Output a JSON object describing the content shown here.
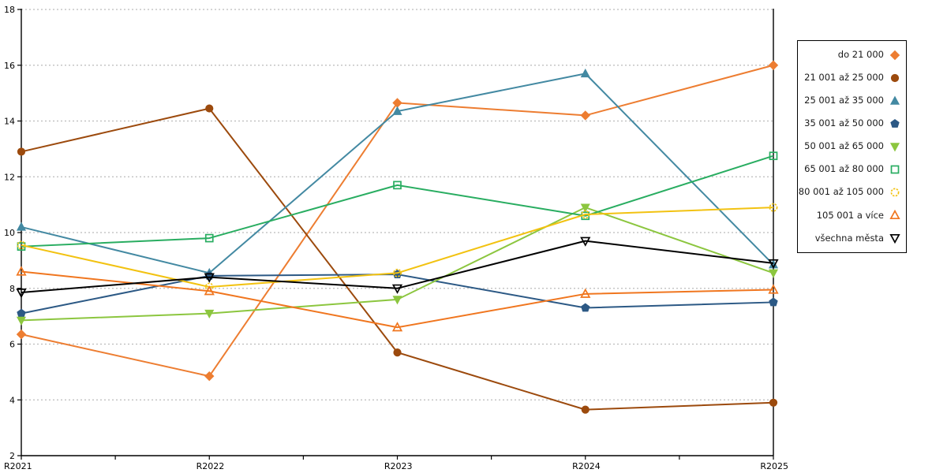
{
  "chart_data": {
    "type": "line",
    "title": "",
    "xlabel": "",
    "ylabel": "",
    "categories": [
      "R2021",
      "R2022",
      "R2023",
      "R2024",
      "R2025"
    ],
    "ylim": [
      2,
      18
    ],
    "yticks": [
      2,
      4,
      6,
      8,
      10,
      12,
      14,
      16,
      18
    ],
    "grid": "horizontal dotted gridlines at each y tick",
    "legend_position": "right, boxed, text right-aligned with marker on right",
    "axis_color": "#000000",
    "grid_color": "#bbbbbb",
    "series": [
      {
        "name": "do 21 000",
        "color": "#ED7D31",
        "marker": "diamond",
        "fill": "filled",
        "values": [
          6.35,
          4.85,
          14.65,
          14.2,
          16.0
        ]
      },
      {
        "name": "21 001 až 25 000",
        "color": "#9C4A0D",
        "marker": "circle",
        "fill": "filled",
        "values": [
          12.9,
          14.45,
          5.7,
          3.65,
          3.9
        ]
      },
      {
        "name": "25 001 až 35 000",
        "color": "#4389A2",
        "marker": "triangle-up",
        "fill": "filled",
        "values": [
          10.2,
          8.55,
          14.35,
          15.7,
          8.85
        ]
      },
      {
        "name": "35 001 až 50 000",
        "color": "#2C5985",
        "marker": "pentagon",
        "fill": "filled",
        "values": [
          7.1,
          8.45,
          8.5,
          7.3,
          7.5
        ]
      },
      {
        "name": "50 001 až 65 000",
        "color": "#8CC63F",
        "marker": "triangle-down",
        "fill": "filled",
        "values": [
          6.85,
          7.1,
          7.6,
          10.9,
          8.55
        ]
      },
      {
        "name": "65 001 až 80 000",
        "color": "#29AD61",
        "marker": "square",
        "fill": "open",
        "values": [
          9.5,
          9.8,
          11.7,
          10.6,
          12.75
        ]
      },
      {
        "name": "80 001 až 105 000",
        "color": "#F2C211",
        "marker": "circle",
        "fill": "open",
        "values": [
          9.55,
          8.05,
          8.55,
          10.65,
          10.9
        ]
      },
      {
        "name": "105 001 a více",
        "color": "#F0761F",
        "marker": "triangle-up",
        "fill": "open",
        "values": [
          8.6,
          7.9,
          6.6,
          7.8,
          7.95
        ]
      },
      {
        "name": "všechna města",
        "color": "#000000",
        "marker": "triangle-down",
        "fill": "open",
        "values": [
          7.85,
          8.4,
          8.0,
          9.7,
          8.9
        ]
      }
    ]
  }
}
